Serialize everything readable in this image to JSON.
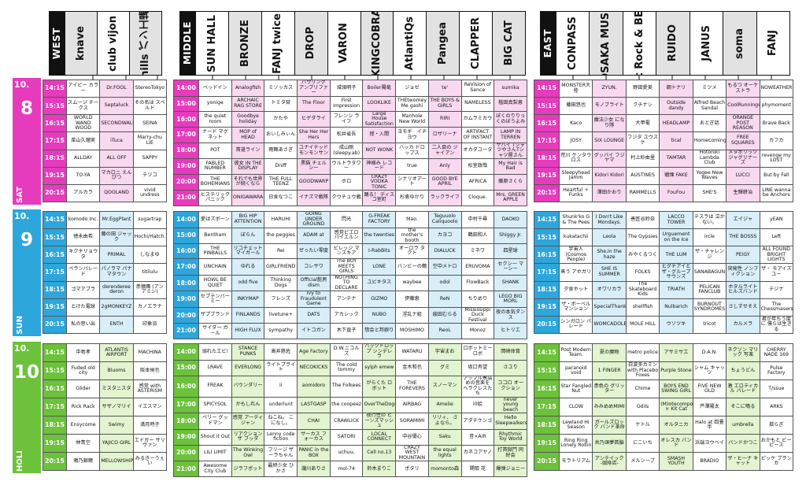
{
  "stages": {
    "west": {
      "label": "WEST",
      "venues": [
        "knave",
        "club vijon",
        "hills パン工場"
      ]
    },
    "middle": {
      "label": "MIDDLE",
      "venues": [
        "SUN HALL",
        "BRONZE",
        "FANJ twice",
        "DROP",
        "VARON",
        "KINGCOBRA",
        "AtlantiQs",
        "Pangea",
        "CLAPPER",
        "BIG CAT"
      ]
    },
    "east": {
      "label": "EAST",
      "venues": [
        "CONPASS",
        "OSAKA MUSE",
        "Foot Rock & BEERS",
        "RUIDO",
        "JANUS",
        "soma",
        "FANJ"
      ]
    }
  },
  "colors": {
    "day8": "#e63bbd",
    "day9": "#2da6dc",
    "day10": "#6cc23a",
    "bg8": "#f8d9f0",
    "bg9": "#d8eef8",
    "bg10": "#e2f4d0"
  },
  "days": [
    {
      "month": "10.",
      "date": "8",
      "weekday": "SAT",
      "west": {
        "times": [
          "14:15",
          "15:15",
          "16:15",
          "17:15",
          "18:15",
          "19:15",
          "20:15"
        ],
        "rows": [
          [
            "アイビー カラー",
            "Dr.FOOL",
            "StereoTokyo"
          ],
          [
            "スムージ チークス",
            "Septaluck",
            "その名は スペルド"
          ],
          [
            "WORLD WAND WOOD",
            "SECONDWALL",
            "SEINA"
          ],
          [
            "菜山久瑠実",
            "iTuca",
            "Marry-chu LIE"
          ],
          [
            "ALLDAY",
            "ALL OFF",
            "SAPPY"
          ],
          [
            "TO-YA",
            "マカロニ えんぴつ",
            "テツコ"
          ],
          [
            "アルカラ",
            "QOOLAND",
            "vivid undress"
          ]
        ]
      },
      "middle": {
        "times": [
          "14:00",
          "15:00",
          "16:00",
          "17:00",
          "18:00",
          "19:00",
          "20:00",
          "21:00"
        ],
        "rows": [
          [
            "ベッドイン",
            "Analogfish",
            "ミソッカス",
            "ハウリング アンプリファー",
            "城領明子",
            "Boiler陽竜",
            "ジョゼ",
            "te'",
            "ReVision of Sence",
            "sumika"
          ],
          [
            "yonige",
            "ARCHAIC RAG STORE",
            "トミタ栞",
            "The Floor",
            "First Impression",
            "LOOKLIKE",
            "THEtwomey Me gashi",
            "THE BOYS & GIRLS",
            "NAMELESS",
            "植田真梨恵"
          ],
          [
            "the quiet room",
            "Goodbye holiday",
            "かたや",
            "ヒゲダライ",
            "フレンシ ライフ",
            "Large House Satisfaction",
            "Manhole New World",
            "RIRI",
            "カムラミカウ",
            "ぼくのりりっくのぼうよみ"
          ],
          [
            "ナード マグネット",
            "MOP of HEAD",
            "おいしみぃん",
            "She Her Her Hers",
            "松井省吾",
            "授・入間",
            "ヨモギ　イチヨウ",
            "ロザリーナ",
            "ARTIFACT OF INSTANT",
            "LAMP IN TERREN"
          ],
          [
            "POT",
            "首道ライン",
            "雨舞あさぎ",
            "ユナイテッド モンモンサン",
            "成山剛 (sleepy.ab)",
            "NOT WONK",
            "ハッカ ドロップス",
            "二人目の ジャイアン",
            "オカダユータ",
            "ヤバイ TシャツやさんTシャツ屋さん"
          ],
          [
            "FABLED NUMBER",
            "彼女 IN THE DISPLAY",
            "Dniff",
            "黒猫 チェルシー",
            "ウルトラタワー",
            "神様み レコード",
            "true",
            "Anly",
            "松室政哉",
            "My Hair is Bad"
          ],
          [
            "THE BOHEMIANS",
            "それでも世界が続くなら",
            "THE FULL TEENZ",
            "GOODWARP",
            "ホロ",
            "CRAZY VODKA TONIC",
            "シナリオアート",
            "GOOD BYE APRIL",
            "AFRICA",
            "藤原さくら"
          ],
          [
            "ヒステリック パニック",
            "ONIGAWARA",
            "日食なつこ",
            "イナズマ戦隊",
            "クウチュウ戦",
            "踊る！ ディスコ室町",
            "杉恵ゆかり",
            "ラックライフ",
            "Cloque.",
            "Mrs. GREEN APPLE"
          ]
        ]
      },
      "east": {
        "times": [
          "14:15",
          "15:15",
          "16:15",
          "17:15",
          "18:15",
          "19:15",
          "20:15"
        ],
        "rows": [
          [
            "MONSTER大陸",
            "ZYUN.",
            "野田愛美",
            "鋼トナリ",
            "ミツメ",
            "もるつ オーケストラ",
            "NOWEATHER"
          ],
          [
            "藤田悠也",
            "モノブライト",
            "クチナシ",
            "Outside dandy",
            "Alfred Beach Sandal",
            "CoolRunnings",
            "phymoment"
          ],
          [
            "Kaco",
            "魔法少女 になり隊",
            "大甲電",
            "HEADLAMP",
            "おとぎ話",
            "ORANGE POST REASON",
            "Brave Back"
          ],
          [
            "JOSY",
            "SIX LOUNGE",
            "フジタ ユウスケ",
            "tical",
            "Homecomings",
            "FREE SQUARES",
            "カフカ"
          ],
          [
            "荒川 ケンタウロス",
            "グッバイ フジヤマ",
            "村上紗由里",
            "TAMTAR",
            "Hotoniki Lambda Club",
            "メタボリック ジャグリナーズ",
            "revenge my LOST"
          ],
          [
            "Sleepyhead Jamm",
            "Kidori Kidori",
            "AUSTINES",
            "戦慄 FAKE",
            "Yogee New Waves",
            "LUCCI",
            "But by Fall"
          ],
          [
            "Heartful ＋Funks",
            "澤田かおり",
            "RAMMELLS",
            "FouFou",
            "SHE'S",
            "生輝耕治",
            "LINE wanna be Anchors"
          ]
        ]
      }
    },
    {
      "month": "10.",
      "date": "9",
      "weekday": "SUN",
      "west": {
        "times": [
          "14:15",
          "15:15",
          "16:15",
          "17:15",
          "18:15",
          "19:15",
          "20:15"
        ],
        "rows": [
          [
            "komodo Inc.",
            "Mr.EggPlant",
            "sugartrap"
          ],
          [
            "徳永由希",
            "藤の田 ジャック",
            "Hochi/Hatch."
          ],
          [
            "キクチリョウタ",
            "PRIMAL",
            "しなまゆ"
          ],
          [
            "ペランパレード",
            "パノラマ パナマタウン",
            "titilulu"
          ],
          [
            "ゴマアブラ",
            "derenderee deron",
            "赤猿團 (アンアミン)"
          ],
          [
            "とけた電球",
            "2gMONKEYZ",
            "カノエラナ"
          ],
          [
            "私の思い出",
            "ENTH",
            "印象派"
          ]
        ]
      },
      "middle": {
        "times": [
          "14:00",
          "15:00",
          "16:00",
          "17:00",
          "18:00",
          "19:00",
          "20:00",
          "21:00"
        ],
        "rows": [
          [
            "愛はズボーン",
            "BIG HIP ATTENTION",
            "HARUHI",
            "GOING UNDER GROUND",
            "閃光",
            "G-FREAK FACTORY",
            "Mao.",
            "Teguuolo Caliquoolo",
            "中村千尋",
            "DAOKO"
          ],
          [
            "Bentham",
            "ぼらん",
            "the peggies",
            "ADAM at",
            "感覚ピエロ パイエルン",
            "the twenties",
            "the mother's booth",
            "カヨコ",
            "鶴田和人",
            "Shiggy Jr."
          ],
          [
            "THE PINBALLS",
            "リコチェット マイガール",
            "Rei",
            "ぜったい零度",
            "ビレッジ マンスキア",
            "I-RabBits",
            "オーロラ タクト",
            "DIALUCK",
            "ミネワ",
            "四星球"
          ],
          [
            "UNCHAIN",
            "ゆれる",
            "GIRLFRIEND",
            "コレサワ",
            "The BOY MEETS GIRLS",
            "LONE",
            "バンビーの鶴",
            "空中メトロ",
            "ERUVOMA",
            "セクシー マーシー"
          ],
          [
            "HOWL BE QUIET",
            "odd five",
            "Thinking Dogs",
            "Official髭男dism",
            "NOTHING TO DECLARE",
            "ユビキタス",
            "waybee",
            "odol",
            "FlowBack",
            "SHANK"
          ],
          [
            "セプテンバーミー",
            "INKYMAP",
            "フレンズ",
            "Ivy to Fraudulent Game",
            "アンテナ",
            "GIZMO",
            "伊藤恵",
            "ReN",
            "ちりめり",
            "LEGO BIG MORL"
          ],
          [
            "ザプブランド",
            "FINLANDS",
            "livetune+",
            "DATS",
            "アカシック",
            "NUBO",
            "淫乱ナ組",
            "綾田むらる",
            "Mississippi Duck Festival",
            "夜の本気ダンス"
          ],
          [
            "サイダー ガール",
            "HIGH FLUX",
            "sympathy",
            "イトコガン",
            "木下直子",
            "惣会と邦娘り",
            "MOSHIMO",
            "ReoL",
            "Monoz",
            "ヒトリエ"
          ]
        ]
      },
      "east": {
        "times": [
          "14:15",
          "15:15",
          "16:15",
          "17:15",
          "18:15",
          "19:15",
          "20:15"
        ],
        "rows": [
          [
            "Shunk'ko G & The Pees",
            "I Don't Like Mondays.",
            "善匠谷鈴奈",
            "LACCO TOWER",
            "テスラは 泣かない。",
            "エイジャ",
            "yEAN"
          ],
          [
            "kukatachii",
            "Leola",
            "The Gypsies",
            "Urguement on the Ice",
            "ircle",
            "THE BOSSS",
            "Left"
          ],
          [
            "宇宙人 (Cosmos People)",
            "She,in the haze",
            "みやくるつく",
            "THE LUM",
            "ザ・チャレンジ",
            "PEIGY",
            "ALL FOUND BRIGHT LIGHTS"
          ],
          [
            "蒸う アホガリ",
            "SHE IS SUMMER",
            "FOLKS",
            "ヒグチアイとザ・グループサウンズ",
            "SANABAGUN",
            "突発性 ノンフィクション",
            "ザ・ モアイズユー"
          ],
          [
            "夕食ホット",
            "オワリカラ",
            "The Skateboard Kids",
            "TRIATH",
            "PELICAN FANCLUB",
            "ホタルライト ヒルズバンド",
            "テジナ"
          ],
          [
            "ザ・ボーベル マンション",
            "SpecialThanks",
            "shellfish",
            "Nulbarich",
            "BURNOUT SYNDROMES",
            "さしすせそえ",
            "The Chessmasers"
          ],
          [
            "シンガロン パレード",
            "WOMCADOLE",
            "MOLE HILL",
            "ウソツキ",
            "tricot",
            "カルメラ",
            "君が年ちう度に 僕らは生きる"
          ]
        ]
      }
    },
    {
      "month": "10.",
      "date": "10",
      "weekday": "HOLI",
      "west": {
        "times": [
          "14:15",
          "15:15",
          "16:15",
          "17:15",
          "18:15",
          "19:15",
          "20:15"
        ],
        "rows": [
          [
            "中島孝",
            "ATLANTIS AIRPORT",
            "MACHINA"
          ],
          [
            "Fuded old city",
            "Bluoms",
            "阪本候也"
          ],
          [
            "Glider",
            "ミスタニスタ",
            "感覚 with ASTERISM"
          ],
          [
            "Rick Rack",
            "サザノマリイ",
            "イエスマン"
          ],
          [
            "Ensycome",
            "Swimy",
            "満月時子"
          ],
          [
            "林青空",
            "YAJICO GIRL",
            "エドガー サリヴァン"
          ],
          [
            "鴉乃銀爾",
            "MELLOWSHiP",
            "みるきーうぇい"
          ]
        ]
      },
      "middle": {
        "times": [
          "14:00",
          "15:00",
          "16:00",
          "17:00",
          "18:00",
          "19:00",
          "20:00",
          "21:00"
        ],
        "rows": [
          [
            "溺れたエビ!",
            "STANCE PUNKS",
            "高井慈佐",
            "Age Factory",
            "D.W.ニコルズ",
            "バックドロップ シンデレラ",
            "WATARU",
            "宇宙まお",
            "ロボットミー ロボ",
            "岡崎体育"
          ],
          [
            "LRAVE",
            "EVERLONG",
            "ライトプライト",
            "NECOKICKS",
            "The cold tommy",
            "sylph emew",
            "金木和也",
            "グミ",
            "坂口有望",
            "さユり"
          ],
          [
            "FREAK",
            "バウンダリー",
            "ii",
            "aomidoro",
            "The Folkees",
            "がらくた ロボット",
            "THE FOREVERS",
            "スノーマン",
            "アップル煮詰めの音楽を ヘラクレスたち",
            "ココロ オークション"
          ],
          [
            "SPICYSOL",
            "かもしれん",
            "underlunt",
            "LASTGASP",
            "the coopeez",
            "OverTheDogs",
            "AIRBAG",
            "Amelie",
            "i0絵",
            "never young beach"
          ],
          [
            "ペリー グッドマン",
            "感覚 アーディジャン",
            "ねこね。 こになし。",
            "CHAI",
            "CRAWLICK",
            "夜行性の ビーンズマッシュ",
            "SORAMIMI",
            "リリィ、 さよなら。",
            "アダチケンゴ",
            "Hello Sleepwalkers"
          ],
          [
            "Shout it Out",
            "リアクション ザ ブッダ",
            "Lenny code fiction",
            "サーカス フォーカス",
            "SATORI",
            "LOCAL CONNECT",
            "中谷優心",
            "Saku",
            "音×AiR",
            "Rhythmic Toy World"
          ],
          [
            "LILI LIMIT",
            "The Winking Owl",
            "フリージ ザーラちゃん",
            "PANIC in the BOX",
            "uchuu,",
            "Cell no.13",
            "CRAZY WEST MOUNTAIN",
            "the equal lights",
            "カネコアヤノ",
            "打首獄門 同好会"
          ],
          [
            "Awesome City Club",
            "ジラフポット",
            "最終少女 ひかさ",
            "瀧川ありさ",
            "mol-74",
            "鈴木まりこ",
            "ポタリ",
            "momonto森",
            "関取 花",
            "爆弾ジョニー"
          ]
        ]
      },
      "east": {
        "times": [
          "14:15",
          "15:15",
          "16:15",
          "17:15",
          "18:15",
          "19:15",
          "20:15"
        ],
        "rows": [
          [
            "Post Modern Team.",
            "夏の魔物",
            "metro police",
            "アサミサエ",
            "D.A.N.",
            "ネクソン マリック 写楽",
            "CHERRY NADE 169"
          ],
          [
            "paranoid void",
            "1 FINGER",
            "白波多カミン with Placebo Foxes",
            "Purple Stone",
            "シャム キャッツ",
            "ちょうどん",
            "Pulse Factory"
          ],
          [
            "Star Fangled Nut",
            "赤色の グリッター",
            "Chime",
            "BOYS END SWING GIRL",
            "FIVE NEW OLD",
            "激 エロティカル パレード",
            "T/ssue"
          ],
          [
            "CLOW",
            "みみめめMIMI",
            "Odils",
            "(M)otocompo × Kit Cat",
            "芦澤陽太",
            "そこに鳴る",
            "ARKS"
          ],
          [
            "Lewland Hi Season",
            "ガールズロック バンド革命",
            "ケトル",
            "オルタニカ",
            "Halo at 四畳半",
            "umbrella",
            "揺らぎ"
          ],
          [
            "Ring Ring Lonely Rollin",
            "共乃頌夢首脳",
            "にこいち",
            "オレスカ バンド",
            "浜端ヨウヘイ",
            "バンドかつこ",
            "おかもと ビービース"
          ],
          [
            "モラトリアム",
            "アンテイック -珈琲店-",
            "メルシープ",
            "SMASH YOUTH",
            "BRADIO",
            "ザ・ヒーナ キャット",
            "ピッケ ブランカ"
          ]
        ]
      }
    }
  ]
}
